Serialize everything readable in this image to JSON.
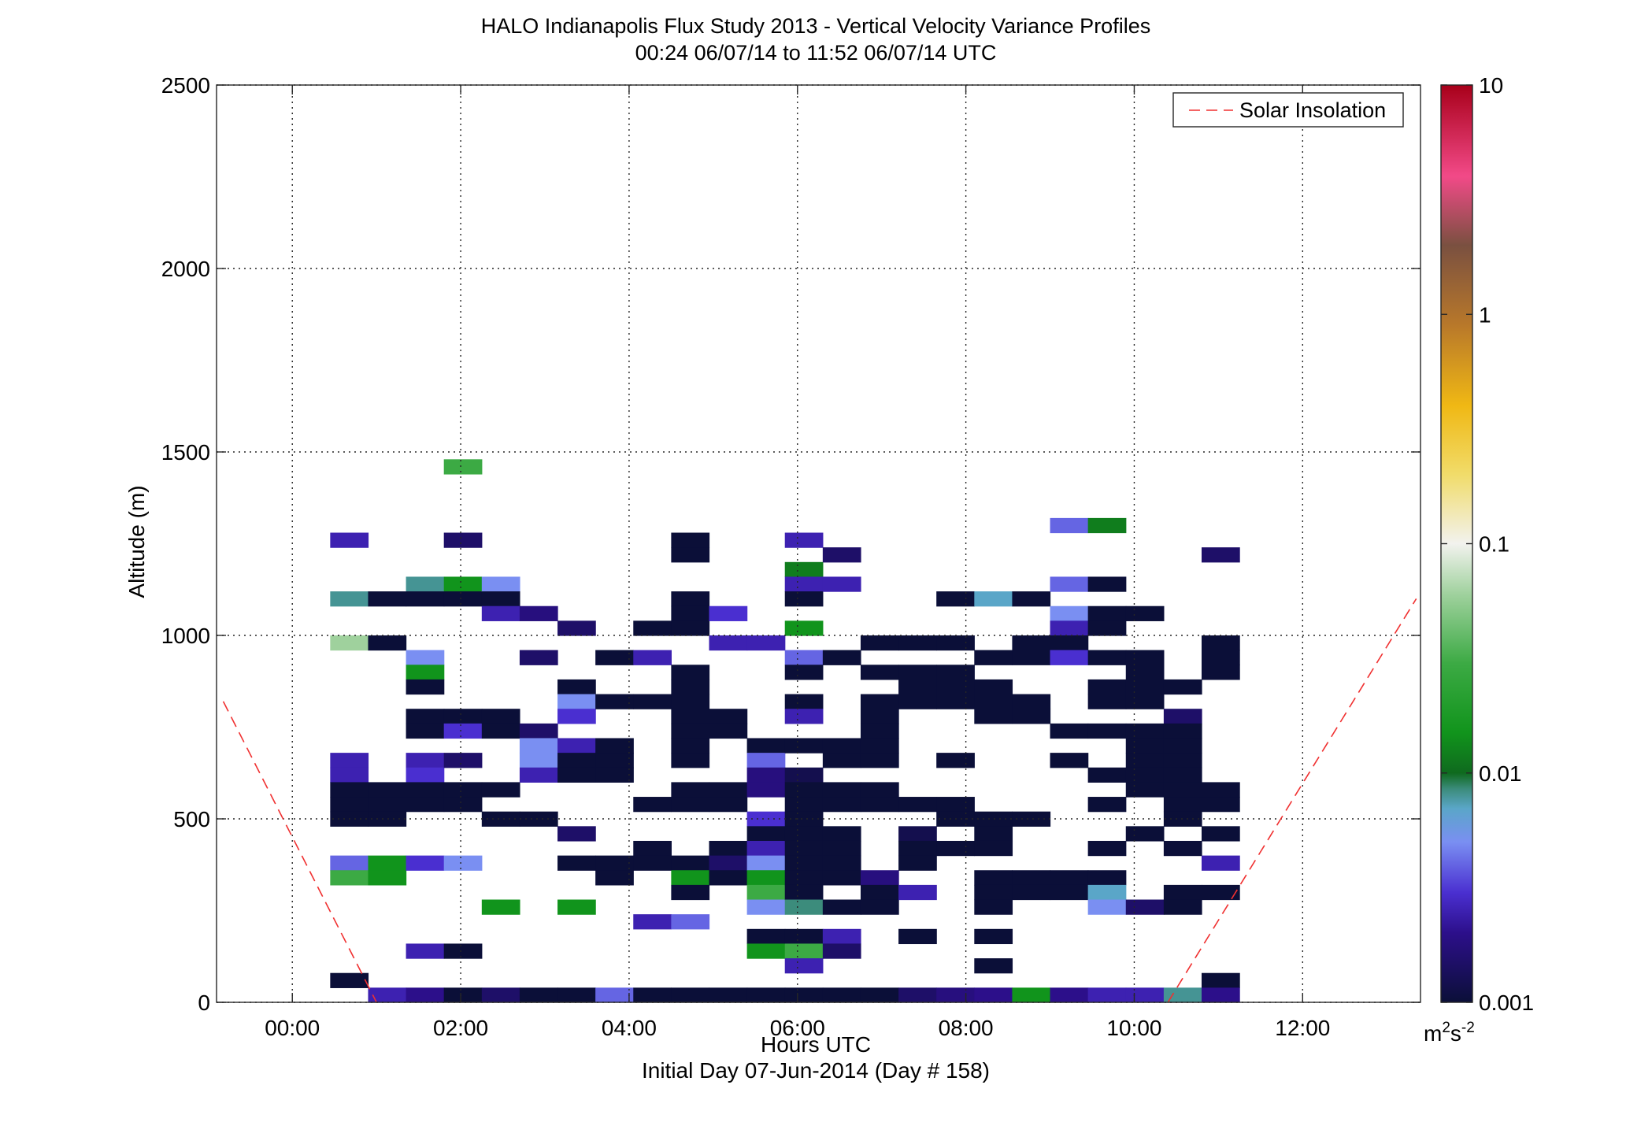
{
  "chart_data": {
    "type": "heatmap",
    "title": "HALO Indianapolis Flux Study 2013 - Vertical Velocity Variance Profiles",
    "subtitle": "00:24 06/07/14 to 11:52 06/07/14  UTC",
    "xlabel": "Hours UTC",
    "xlabel2": "Initial Day 07-Jun-2014 (Day # 158)",
    "ylabel": "Altitude (m)",
    "xlim": [
      -0.9,
      13.4
    ],
    "ylim": [
      0,
      2500
    ],
    "x_ticks": [
      0,
      2,
      4,
      6,
      8,
      10,
      12
    ],
    "x_tick_labels": [
      "00:00",
      "02:00",
      "04:00",
      "06:00",
      "08:00",
      "10:00",
      "12:00"
    ],
    "y_ticks": [
      0,
      500,
      1000,
      1500,
      2000,
      2500
    ],
    "y_tick_labels": [
      "0",
      "500",
      "1000",
      "1500",
      "2000",
      "2500"
    ],
    "grid": true,
    "cell_width_hours": 0.45,
    "cell_height_m": 40,
    "colorbar": {
      "scale": "log",
      "range": [
        0.001,
        10
      ],
      "ticks": [
        0.001,
        0.01,
        0.1,
        1,
        10
      ],
      "tick_labels": [
        "0.001",
        "0.01",
        "0.1",
        "1",
        "10"
      ],
      "unit_base": "m",
      "unit_exp1": "2",
      "unit_mid": "s",
      "unit_exp2": "-2",
      "stops": [
        {
          "v": 0.001,
          "color": "#0b0f38"
        },
        {
          "v": 0.002,
          "color": "#2c0f8a"
        },
        {
          "v": 0.003,
          "color": "#4a2fd0"
        },
        {
          "v": 0.005,
          "color": "#7a8ff2"
        },
        {
          "v": 0.007,
          "color": "#5aa6c8"
        },
        {
          "v": 0.0085,
          "color": "#3c8c7c"
        },
        {
          "v": 0.01,
          "color": "#0f6a1e"
        },
        {
          "v": 0.015,
          "color": "#11941c"
        },
        {
          "v": 0.03,
          "color": "#3caa44"
        },
        {
          "v": 0.06,
          "color": "#9fd19d"
        },
        {
          "v": 0.1,
          "color": "#f2f2ee"
        },
        {
          "v": 0.2,
          "color": "#f1dc6a"
        },
        {
          "v": 0.4,
          "color": "#f0b814"
        },
        {
          "v": 0.9,
          "color": "#b8782a"
        },
        {
          "v": 2.0,
          "color": "#7a5040"
        },
        {
          "v": 4.0,
          "color": "#f24a88"
        },
        {
          "v": 10,
          "color": "#a8001a"
        }
      ]
    },
    "legend": {
      "position": "top-right",
      "label": "Solar Insolation",
      "color": "#f03030"
    },
    "solar_insolation": {
      "segments": [
        [
          [
            -0.82,
            820
          ],
          [
            1.0,
            0
          ]
        ],
        [
          [
            10.4,
            0
          ],
          [
            13.35,
            1100
          ]
        ]
      ]
    },
    "cells": [
      [
        0.45,
        1240,
        0.0025
      ],
      [
        0.45,
        1080,
        0.008
      ],
      [
        0.45,
        960,
        0.06
      ],
      [
        0.45,
        640,
        0.0025
      ],
      [
        0.45,
        600,
        0.0025
      ],
      [
        0.45,
        560,
        0.001
      ],
      [
        0.45,
        520,
        0.001
      ],
      [
        0.45,
        480,
        0.001
      ],
      [
        0.45,
        360,
        0.004
      ],
      [
        0.45,
        320,
        0.03
      ],
      [
        0.45,
        40,
        0.001
      ],
      [
        0.9,
        1080,
        0.001
      ],
      [
        0.9,
        960,
        0.001
      ],
      [
        0.9,
        560,
        0.001
      ],
      [
        0.9,
        520,
        0.001
      ],
      [
        0.9,
        480,
        0.001
      ],
      [
        0.9,
        360,
        0.015
      ],
      [
        0.9,
        320,
        0.015
      ],
      [
        0.9,
        0,
        0.0025
      ],
      [
        1.35,
        1120,
        0.008
      ],
      [
        1.35,
        1080,
        0.001
      ],
      [
        1.35,
        920,
        0.005
      ],
      [
        1.35,
        880,
        0.015
      ],
      [
        1.35,
        840,
        0.001
      ],
      [
        1.35,
        760,
        0.001
      ],
      [
        1.35,
        720,
        0.001
      ],
      [
        1.35,
        640,
        0.0025
      ],
      [
        1.35,
        600,
        0.003
      ],
      [
        1.35,
        560,
        0.001
      ],
      [
        1.35,
        520,
        0.001
      ],
      [
        1.35,
        360,
        0.003
      ],
      [
        1.35,
        120,
        0.0025
      ],
      [
        1.35,
        0,
        0.002
      ],
      [
        1.8,
        1440,
        0.03
      ],
      [
        1.8,
        1240,
        0.0015
      ],
      [
        1.8,
        1120,
        0.015
      ],
      [
        1.8,
        1080,
        0.001
      ],
      [
        1.8,
        760,
        0.001
      ],
      [
        1.8,
        720,
        0.003
      ],
      [
        1.8,
        640,
        0.0015
      ],
      [
        1.8,
        560,
        0.001
      ],
      [
        1.8,
        520,
        0.001
      ],
      [
        1.8,
        360,
        0.005
      ],
      [
        1.8,
        120,
        0.001
      ],
      [
        1.8,
        0,
        0.001
      ],
      [
        2.25,
        1120,
        0.005
      ],
      [
        2.25,
        1080,
        0.001
      ],
      [
        2.25,
        1040,
        0.0025
      ],
      [
        2.25,
        760,
        0.001
      ],
      [
        2.25,
        720,
        0.001
      ],
      [
        2.25,
        560,
        0.001
      ],
      [
        2.25,
        480,
        0.001
      ],
      [
        2.25,
        240,
        0.015
      ],
      [
        2.25,
        0,
        0.0015
      ],
      [
        2.7,
        1040,
        0.0018
      ],
      [
        2.7,
        920,
        0.0015
      ],
      [
        2.7,
        720,
        0.0015
      ],
      [
        2.7,
        680,
        0.005
      ],
      [
        2.7,
        640,
        0.005
      ],
      [
        2.7,
        600,
        0.0025
      ],
      [
        2.7,
        480,
        0.001
      ],
      [
        2.7,
        0,
        0.001
      ],
      [
        3.15,
        1000,
        0.0015
      ],
      [
        3.15,
        840,
        0.001
      ],
      [
        3.15,
        800,
        0.005
      ],
      [
        3.15,
        760,
        0.003
      ],
      [
        3.15,
        680,
        0.0025
      ],
      [
        3.15,
        640,
        0.001
      ],
      [
        3.15,
        600,
        0.001
      ],
      [
        3.15,
        440,
        0.0015
      ],
      [
        3.15,
        360,
        0.001
      ],
      [
        3.15,
        240,
        0.015
      ],
      [
        3.15,
        0,
        0.001
      ],
      [
        3.6,
        920,
        0.001
      ],
      [
        3.6,
        800,
        0.001
      ],
      [
        3.6,
        680,
        0.001
      ],
      [
        3.6,
        640,
        0.001
      ],
      [
        3.6,
        600,
        0.001
      ],
      [
        3.6,
        360,
        0.001
      ],
      [
        3.6,
        320,
        0.001
      ],
      [
        3.6,
        0,
        0.004
      ],
      [
        4.05,
        1000,
        0.001
      ],
      [
        4.05,
        920,
        0.0025
      ],
      [
        4.05,
        800,
        0.001
      ],
      [
        4.05,
        520,
        0.001
      ],
      [
        4.05,
        400,
        0.001
      ],
      [
        4.05,
        360,
        0.001
      ],
      [
        4.05,
        200,
        0.0025
      ],
      [
        4.05,
        0,
        0.001
      ],
      [
        4.5,
        1240,
        0.001
      ],
      [
        4.5,
        1200,
        0.001
      ],
      [
        4.5,
        1080,
        0.001
      ],
      [
        4.5,
        1040,
        0.001
      ],
      [
        4.5,
        1000,
        0.001
      ],
      [
        4.5,
        880,
        0.001
      ],
      [
        4.5,
        840,
        0.001
      ],
      [
        4.5,
        800,
        0.001
      ],
      [
        4.5,
        760,
        0.001
      ],
      [
        4.5,
        720,
        0.001
      ],
      [
        4.5,
        680,
        0.001
      ],
      [
        4.5,
        640,
        0.001
      ],
      [
        4.5,
        560,
        0.001
      ],
      [
        4.5,
        520,
        0.001
      ],
      [
        4.5,
        360,
        0.001
      ],
      [
        4.5,
        320,
        0.015
      ],
      [
        4.5,
        280,
        0.001
      ],
      [
        4.5,
        200,
        0.004
      ],
      [
        4.5,
        0,
        0.001
      ],
      [
        4.95,
        1040,
        0.003
      ],
      [
        4.95,
        960,
        0.0025
      ],
      [
        4.95,
        760,
        0.001
      ],
      [
        4.95,
        720,
        0.001
      ],
      [
        4.95,
        560,
        0.001
      ],
      [
        4.95,
        520,
        0.001
      ],
      [
        4.95,
        400,
        0.001
      ],
      [
        4.95,
        360,
        0.0015
      ],
      [
        4.95,
        320,
        0.001
      ],
      [
        4.95,
        0,
        0.001
      ],
      [
        5.4,
        960,
        0.0025
      ],
      [
        5.4,
        680,
        0.001
      ],
      [
        5.4,
        640,
        0.004
      ],
      [
        5.4,
        600,
        0.0018
      ],
      [
        5.4,
        560,
        0.0018
      ],
      [
        5.4,
        480,
        0.003
      ],
      [
        5.4,
        440,
        0.001
      ],
      [
        5.4,
        400,
        0.0025
      ],
      [
        5.4,
        360,
        0.005
      ],
      [
        5.4,
        320,
        0.015
      ],
      [
        5.4,
        280,
        0.03
      ],
      [
        5.4,
        240,
        0.005
      ],
      [
        5.4,
        160,
        0.001
      ],
      [
        5.4,
        120,
        0.015
      ],
      [
        5.4,
        0,
        0.001
      ],
      [
        5.85,
        1240,
        0.0025
      ],
      [
        5.85,
        1160,
        0.012
      ],
      [
        5.85,
        1120,
        0.0025
      ],
      [
        5.85,
        1080,
        0.001
      ],
      [
        5.85,
        1000,
        0.015
      ],
      [
        5.85,
        920,
        0.004
      ],
      [
        5.85,
        880,
        0.001
      ],
      [
        5.85,
        800,
        0.001
      ],
      [
        5.85,
        760,
        0.0025
      ],
      [
        5.85,
        680,
        0.001
      ],
      [
        5.85,
        600,
        0.0012
      ],
      [
        5.85,
        560,
        0.001
      ],
      [
        5.85,
        520,
        0.001
      ],
      [
        5.85,
        480,
        0.001
      ],
      [
        5.85,
        440,
        0.001
      ],
      [
        5.85,
        400,
        0.001
      ],
      [
        5.85,
        360,
        0.001
      ],
      [
        5.85,
        320,
        0.001
      ],
      [
        5.85,
        280,
        0.001
      ],
      [
        5.85,
        240,
        0.0085
      ],
      [
        5.85,
        160,
        0.001
      ],
      [
        5.85,
        120,
        0.03
      ],
      [
        5.85,
        80,
        0.0025
      ],
      [
        5.85,
        0,
        0.001
      ],
      [
        6.3,
        1200,
        0.0015
      ],
      [
        6.3,
        1120,
        0.0025
      ],
      [
        6.3,
        920,
        0.001
      ],
      [
        6.3,
        680,
        0.001
      ],
      [
        6.3,
        640,
        0.001
      ],
      [
        6.3,
        560,
        0.001
      ],
      [
        6.3,
        520,
        0.001
      ],
      [
        6.3,
        440,
        0.001
      ],
      [
        6.3,
        400,
        0.001
      ],
      [
        6.3,
        360,
        0.001
      ],
      [
        6.3,
        320,
        0.001
      ],
      [
        6.3,
        240,
        0.001
      ],
      [
        6.3,
        160,
        0.0025
      ],
      [
        6.3,
        120,
        0.0015
      ],
      [
        6.3,
        0,
        0.001
      ],
      [
        6.75,
        960,
        0.001
      ],
      [
        6.75,
        880,
        0.001
      ],
      [
        6.75,
        800,
        0.001
      ],
      [
        6.75,
        760,
        0.001
      ],
      [
        6.75,
        720,
        0.001
      ],
      [
        6.75,
        680,
        0.001
      ],
      [
        6.75,
        640,
        0.001
      ],
      [
        6.75,
        560,
        0.001
      ],
      [
        6.75,
        520,
        0.001
      ],
      [
        6.75,
        320,
        0.0018
      ],
      [
        6.75,
        280,
        0.001
      ],
      [
        6.75,
        240,
        0.001
      ],
      [
        6.75,
        0,
        0.001
      ],
      [
        7.2,
        960,
        0.001
      ],
      [
        7.2,
        880,
        0.001
      ],
      [
        7.2,
        840,
        0.001
      ],
      [
        7.2,
        800,
        0.001
      ],
      [
        7.2,
        520,
        0.001
      ],
      [
        7.2,
        440,
        0.0012
      ],
      [
        7.2,
        400,
        0.001
      ],
      [
        7.2,
        360,
        0.001
      ],
      [
        7.2,
        280,
        0.0025
      ],
      [
        7.2,
        160,
        0.001
      ],
      [
        7.2,
        0,
        0.0015
      ],
      [
        7.65,
        1080,
        0.001
      ],
      [
        7.65,
        960,
        0.001
      ],
      [
        7.65,
        880,
        0.001
      ],
      [
        7.65,
        840,
        0.001
      ],
      [
        7.65,
        800,
        0.001
      ],
      [
        7.65,
        640,
        0.001
      ],
      [
        7.65,
        520,
        0.001
      ],
      [
        7.65,
        480,
        0.001
      ],
      [
        7.65,
        400,
        0.001
      ],
      [
        7.65,
        0,
        0.0018
      ],
      [
        8.1,
        1080,
        0.007
      ],
      [
        8.1,
        920,
        0.001
      ],
      [
        8.1,
        840,
        0.001
      ],
      [
        8.1,
        800,
        0.001
      ],
      [
        8.1,
        760,
        0.001
      ],
      [
        8.1,
        480,
        0.001
      ],
      [
        8.1,
        440,
        0.001
      ],
      [
        8.1,
        400,
        0.001
      ],
      [
        8.1,
        320,
        0.001
      ],
      [
        8.1,
        280,
        0.001
      ],
      [
        8.1,
        240,
        0.001
      ],
      [
        8.1,
        160,
        0.001
      ],
      [
        8.1,
        80,
        0.001
      ],
      [
        8.1,
        0,
        0.002
      ],
      [
        8.55,
        1080,
        0.001
      ],
      [
        8.55,
        960,
        0.001
      ],
      [
        8.55,
        920,
        0.001
      ],
      [
        8.55,
        800,
        0.001
      ],
      [
        8.55,
        760,
        0.001
      ],
      [
        8.55,
        480,
        0.001
      ],
      [
        8.55,
        320,
        0.001
      ],
      [
        8.55,
        280,
        0.001
      ],
      [
        8.55,
        0,
        0.015
      ],
      [
        9.0,
        1280,
        0.004
      ],
      [
        9.0,
        1120,
        0.004
      ],
      [
        9.0,
        1040,
        0.005
      ],
      [
        9.0,
        1000,
        0.0025
      ],
      [
        9.0,
        960,
        0.001
      ],
      [
        9.0,
        920,
        0.003
      ],
      [
        9.0,
        720,
        0.001
      ],
      [
        9.0,
        640,
        0.001
      ],
      [
        9.0,
        320,
        0.001
      ],
      [
        9.0,
        280,
        0.001
      ],
      [
        9.0,
        0,
        0.002
      ],
      [
        9.45,
        1280,
        0.012
      ],
      [
        9.45,
        1120,
        0.001
      ],
      [
        9.45,
        1040,
        0.001
      ],
      [
        9.45,
        1000,
        0.001
      ],
      [
        9.45,
        920,
        0.001
      ],
      [
        9.45,
        840,
        0.001
      ],
      [
        9.45,
        800,
        0.001
      ],
      [
        9.45,
        720,
        0.001
      ],
      [
        9.45,
        600,
        0.001
      ],
      [
        9.45,
        520,
        0.001
      ],
      [
        9.45,
        400,
        0.001
      ],
      [
        9.45,
        320,
        0.001
      ],
      [
        9.45,
        280,
        0.007
      ],
      [
        9.45,
        240,
        0.005
      ],
      [
        9.45,
        0,
        0.0025
      ],
      [
        9.9,
        1040,
        0.001
      ],
      [
        9.9,
        920,
        0.001
      ],
      [
        9.9,
        880,
        0.001
      ],
      [
        9.9,
        840,
        0.001
      ],
      [
        9.9,
        800,
        0.001
      ],
      [
        9.9,
        720,
        0.001
      ],
      [
        9.9,
        680,
        0.001
      ],
      [
        9.9,
        640,
        0.001
      ],
      [
        9.9,
        600,
        0.001
      ],
      [
        9.9,
        560,
        0.001
      ],
      [
        9.9,
        440,
        0.001
      ],
      [
        9.9,
        240,
        0.0015
      ],
      [
        9.9,
        0,
        0.0025
      ],
      [
        10.35,
        840,
        0.001
      ],
      [
        10.35,
        760,
        0.0015
      ],
      [
        10.35,
        720,
        0.001
      ],
      [
        10.35,
        680,
        0.001
      ],
      [
        10.35,
        640,
        0.001
      ],
      [
        10.35,
        600,
        0.001
      ],
      [
        10.35,
        560,
        0.001
      ],
      [
        10.35,
        520,
        0.001
      ],
      [
        10.35,
        480,
        0.001
      ],
      [
        10.35,
        400,
        0.001
      ],
      [
        10.35,
        280,
        0.001
      ],
      [
        10.35,
        240,
        0.001
      ],
      [
        10.35,
        0,
        0.008
      ],
      [
        10.8,
        1200,
        0.0015
      ],
      [
        10.8,
        960,
        0.001
      ],
      [
        10.8,
        920,
        0.001
      ],
      [
        10.8,
        880,
        0.001
      ],
      [
        10.8,
        560,
        0.001
      ],
      [
        10.8,
        520,
        0.001
      ],
      [
        10.8,
        440,
        0.001
      ],
      [
        10.8,
        360,
        0.0025
      ],
      [
        10.8,
        280,
        0.001
      ],
      [
        10.8,
        40,
        0.001
      ],
      [
        10.8,
        0,
        0.002
      ]
    ]
  }
}
